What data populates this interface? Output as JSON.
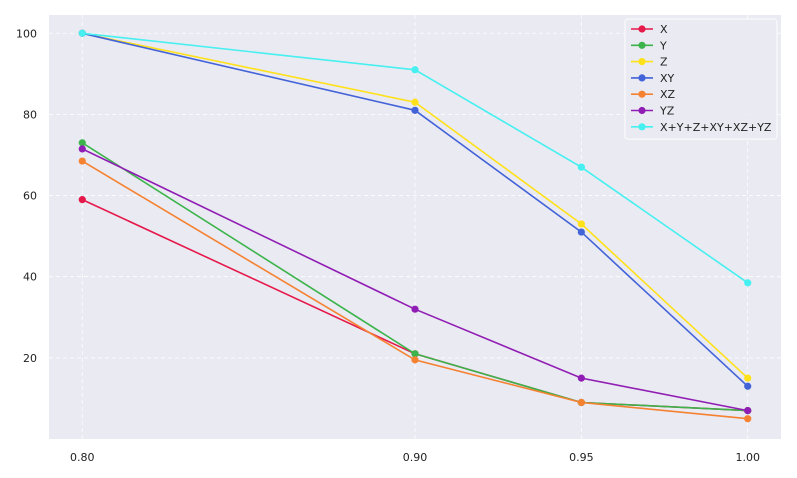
{
  "chart_data": {
    "type": "line",
    "title": "",
    "xlabel": "",
    "ylabel": "",
    "x": [
      0.8,
      0.9,
      0.95,
      1.0
    ],
    "x_tick_labels": [
      "0.80",
      "0.90",
      "0.95",
      "1.00"
    ],
    "y_ticks": [
      20,
      40,
      60,
      80,
      100
    ],
    "xlim": [
      0.79,
      1.01
    ],
    "ylim": [
      0,
      104.5
    ],
    "grid": true,
    "grid_style": "dashed",
    "background": "#eaeaf2",
    "legend_position": "top-right",
    "series": [
      {
        "name": "X",
        "color": "#e6194b",
        "values": [
          59,
          21,
          9,
          7
        ]
      },
      {
        "name": "Y",
        "color": "#3cb44b",
        "values": [
          73,
          21,
          9,
          7
        ]
      },
      {
        "name": "Z",
        "color": "#ffe119",
        "values": [
          100,
          83,
          53,
          15
        ]
      },
      {
        "name": "XY",
        "color": "#4363d8",
        "values": [
          100,
          81,
          51,
          13
        ]
      },
      {
        "name": "XZ",
        "color": "#f58231",
        "values": [
          68.5,
          19.5,
          9,
          5
        ]
      },
      {
        "name": "YZ",
        "color": "#911eb4",
        "values": [
          71.5,
          32,
          15,
          7
        ]
      },
      {
        "name": "X+Y+Z+XY+XZ+YZ",
        "color": "#46f0f0",
        "values": [
          100,
          91,
          67,
          38.5
        ]
      }
    ]
  }
}
